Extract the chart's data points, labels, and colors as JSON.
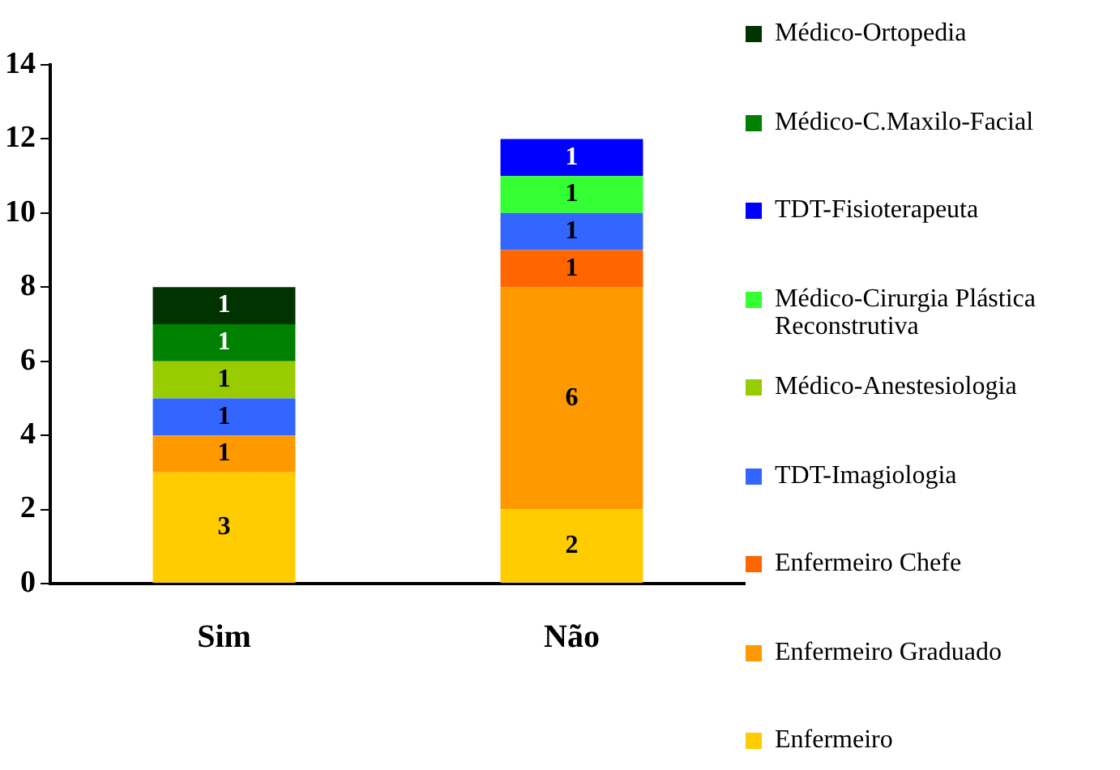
{
  "chart_data": {
    "type": "bar",
    "stacked": true,
    "categories": [
      "Sim",
      "Não"
    ],
    "ylim": [
      0,
      14
    ],
    "yticks": [
      0,
      2,
      4,
      6,
      8,
      10,
      12,
      14
    ],
    "grid": false,
    "legend": "right",
    "data_labels": true,
    "series": [
      {
        "name": "Enfermeiro",
        "color": "#ffcc00",
        "values": [
          3,
          2
        ]
      },
      {
        "name": "Enfermeiro Graduado",
        "color": "#ff9900",
        "values": [
          1,
          6
        ]
      },
      {
        "name": "Enfermeiro Chefe",
        "color": "#ff6600",
        "values": [
          null,
          1
        ]
      },
      {
        "name": "TDT-Imagiologia",
        "color": "#3366ff",
        "values": [
          1,
          1
        ]
      },
      {
        "name": "Médico-Anestesiologia",
        "color": "#99cc00",
        "values": [
          1,
          null
        ]
      },
      {
        "name": "Médico-Cirurgia Plástica Reconstrutiva",
        "color": "#33ff33",
        "values": [
          null,
          1
        ]
      },
      {
        "name": "TDT-Fisioterapeuta",
        "color": "#0000ff",
        "values": [
          null,
          1
        ]
      },
      {
        "name": "Médico-C.Maxilo-Facial",
        "color": "#008000",
        "values": [
          1,
          null
        ]
      },
      {
        "name": "Médico-Ortopedia",
        "color": "#003300",
        "values": [
          1,
          null
        ]
      }
    ]
  }
}
